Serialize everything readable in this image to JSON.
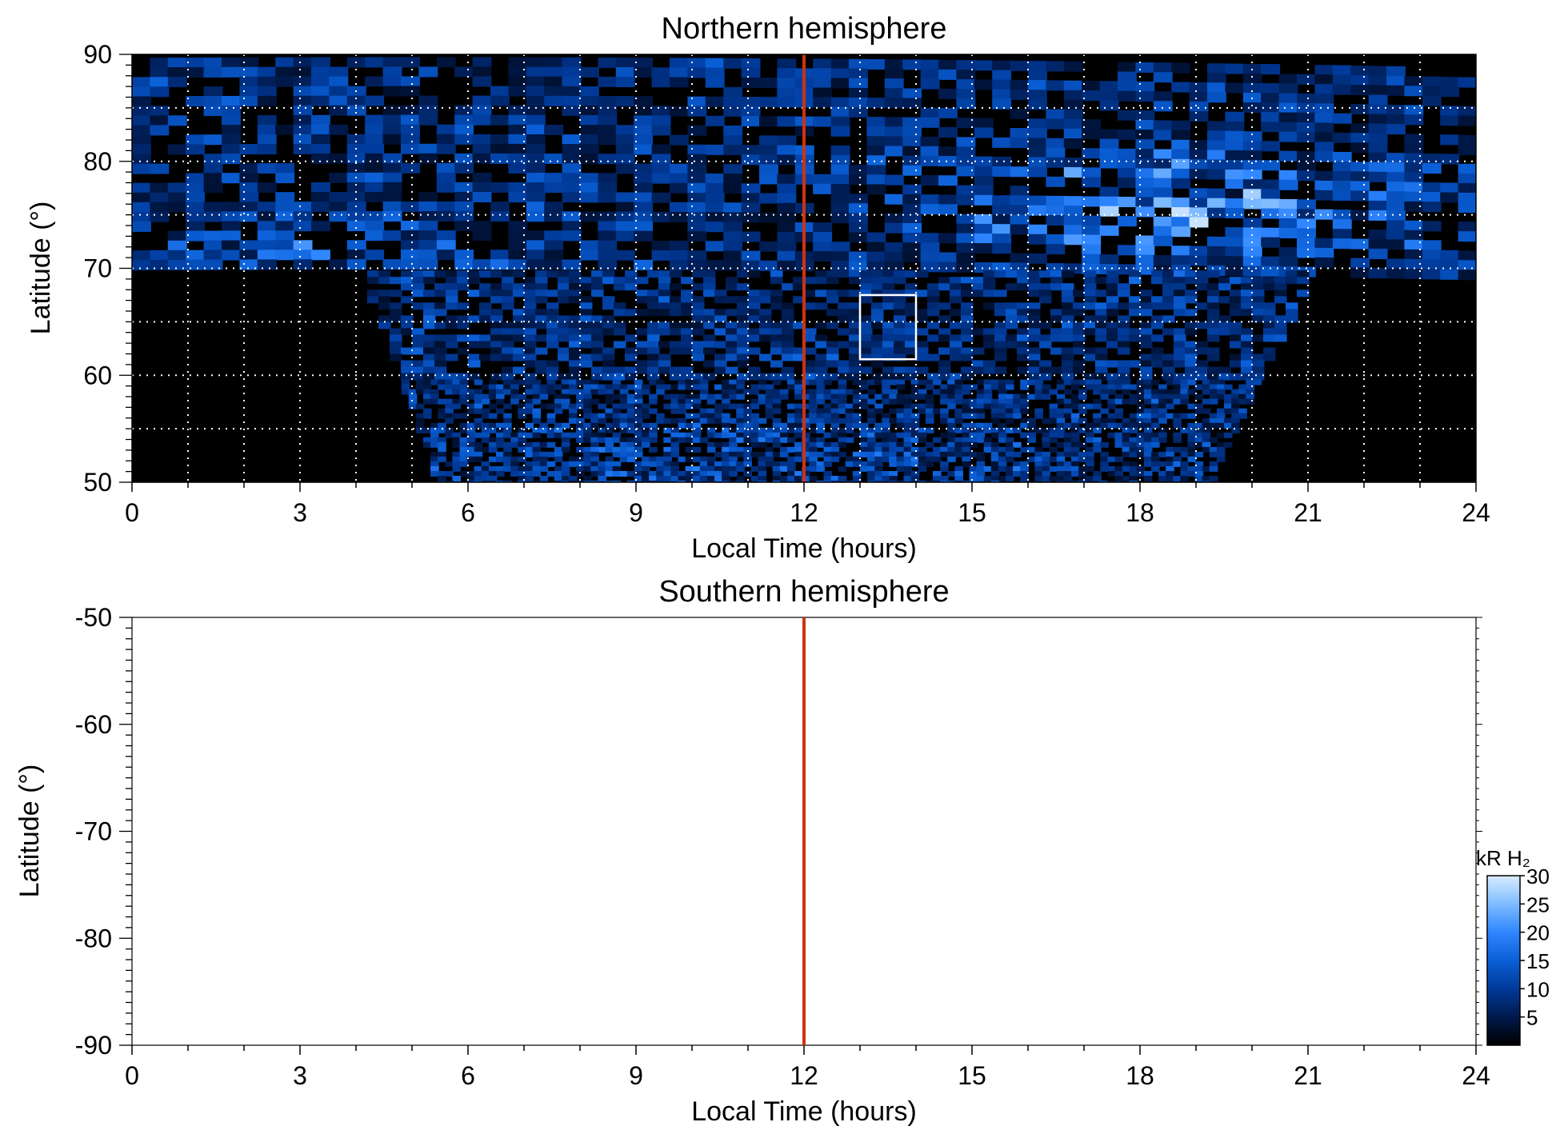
{
  "chart_data": [
    {
      "type": "heatmap",
      "title": "Northern hemisphere",
      "xlabel": "Local Time (hours)",
      "ylabel": "Latitude (°)",
      "xlim": [
        0,
        24
      ],
      "ylim": [
        50,
        90
      ],
      "xticks": [
        "0",
        "3",
        "6",
        "9",
        "12",
        "15",
        "18",
        "21",
        "24"
      ],
      "yticks": [
        "50",
        "60",
        "70",
        "80",
        "90"
      ],
      "grid": true,
      "coverage": {
        "latitude_above_70": "all local times (0-24 h)",
        "latitude_below_70": "approx. 4 h to 21 h local time"
      },
      "reference_line": {
        "local_time": 12,
        "color": "#cc3311"
      },
      "highlight_box": {
        "local_time": [
          13,
          14
        ],
        "latitude": [
          61.5,
          67.5
        ],
        "color": "#ffffff"
      },
      "features": [
        {
          "description": "brightest emission (up to ~30 kR) near 17–21 h local time, latitude ~73–80°"
        },
        {
          "description": "secondary bright band near 0–6 h local time, latitude ~70–75°"
        }
      ]
    },
    {
      "type": "heatmap",
      "title": "Southern hemisphere",
      "xlabel": "Local Time (hours)",
      "ylabel": "Latitude (°)",
      "xlim": [
        0,
        24
      ],
      "ylim": [
        -90,
        -50
      ],
      "xticks": [
        "0",
        "3",
        "6",
        "9",
        "12",
        "15",
        "18",
        "21",
        "24"
      ],
      "yticks": [
        "-50",
        "-60",
        "-70",
        "-80",
        "-90"
      ],
      "grid": false,
      "reference_line": {
        "local_time": 12,
        "color": "#cc3311"
      },
      "empty": true
    }
  ],
  "colorbar": {
    "label": "kR H₂",
    "range": [
      0,
      30
    ],
    "ticks": [
      "30",
      "25",
      "20",
      "15",
      "10",
      "5"
    ],
    "colors": [
      "#000000",
      "#001a4d",
      "#003a99",
      "#0a5fd6",
      "#2f86ff",
      "#7fbcff",
      "#d8ecff"
    ]
  }
}
